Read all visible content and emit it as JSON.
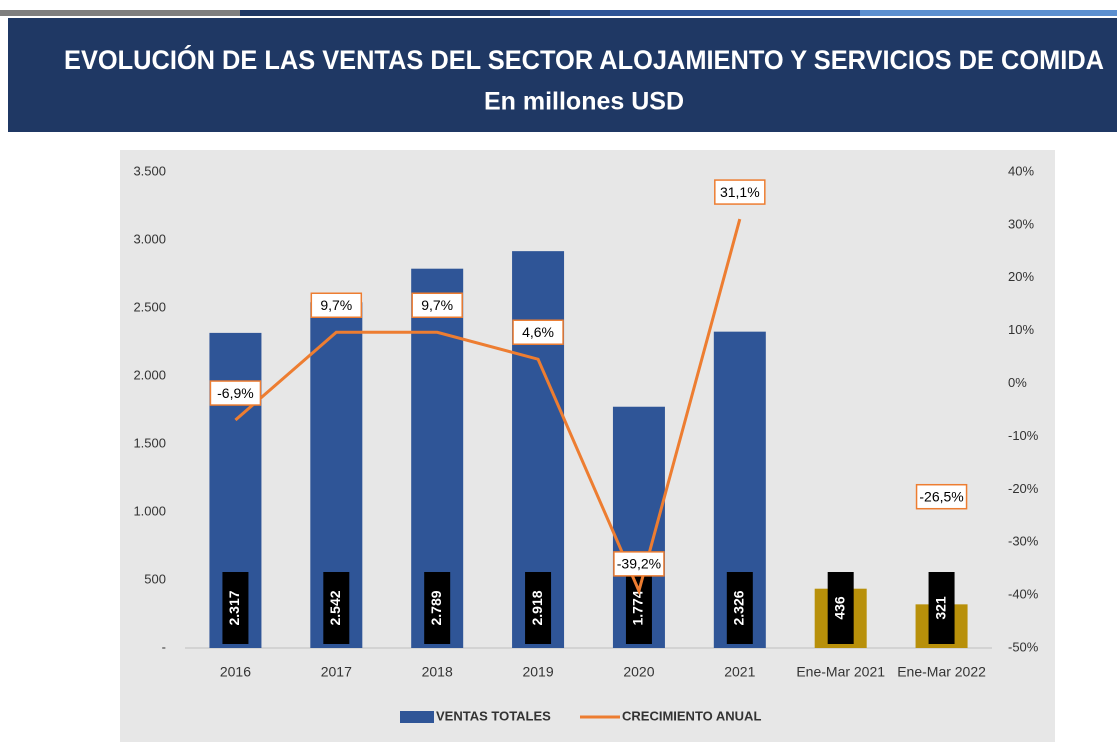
{
  "chart_data": {
    "type": "bar",
    "title": "EVOLUCIÓN DE LAS VENTAS DEL SECTOR ALOJAMIENTO Y SERVICIOS DE COMIDA",
    "subtitle": "En millones USD",
    "categories": [
      "2016",
      "2017",
      "2018",
      "2019",
      "2020",
      "2021",
      "Ene-Mar 2021",
      "Ene-Mar 2022"
    ],
    "series": [
      {
        "name": "VENTAS TOTALES",
        "type": "bar",
        "color": "#2f5597",
        "colors": [
          "#2f5597",
          "#2f5597",
          "#2f5597",
          "#2f5597",
          "#2f5597",
          "#2f5597",
          "#b8900a",
          "#b8900a"
        ],
        "values": [
          2317,
          2542,
          2789,
          2918,
          1774,
          2326,
          436,
          321
        ],
        "value_labels": [
          "2.317",
          "2.542",
          "2.789",
          "2.918",
          "1.774",
          "2.326",
          "436",
          "321"
        ]
      },
      {
        "name": "CRECIMIENTO ANUAL",
        "type": "line",
        "axis": "y2",
        "color": "#ed7d31",
        "values": [
          -6.9,
          9.7,
          9.7,
          4.6,
          -39.2,
          31.1,
          null,
          -26.5
        ],
        "value_labels": [
          "-6,9%",
          "9,7%",
          "9,7%",
          "4,6%",
          "-39,2%",
          "31,1%",
          null,
          "-26,5%"
        ]
      }
    ],
    "ylim": [
      0,
      3500
    ],
    "yticks": [
      {
        "value": 0,
        "label": "-"
      },
      500,
      {
        "value": 1000,
        "label": "1.000"
      },
      {
        "value": 1500,
        "label": "1.500"
      },
      {
        "value": 2000,
        "label": "2.000"
      },
      {
        "value": 2500,
        "label": "2.500"
      },
      {
        "value": 3000,
        "label": "3.000"
      },
      {
        "value": 3500,
        "label": "3.500"
      }
    ],
    "y2lim": [
      -50,
      40
    ],
    "y2ticks": [
      {
        "value": -50,
        "label": "-50%"
      },
      {
        "value": -40,
        "label": "-40%"
      },
      {
        "value": -30,
        "label": "-30%"
      },
      {
        "value": -20,
        "label": "-20%"
      },
      {
        "value": -10,
        "label": "-10%"
      },
      {
        "value": 0,
        "label": "0%"
      },
      {
        "value": 10,
        "label": "10%"
      },
      {
        "value": 20,
        "label": "20%"
      },
      {
        "value": 30,
        "label": "30%"
      },
      {
        "value": 40,
        "label": "40%"
      }
    ],
    "legend": "bottom"
  }
}
